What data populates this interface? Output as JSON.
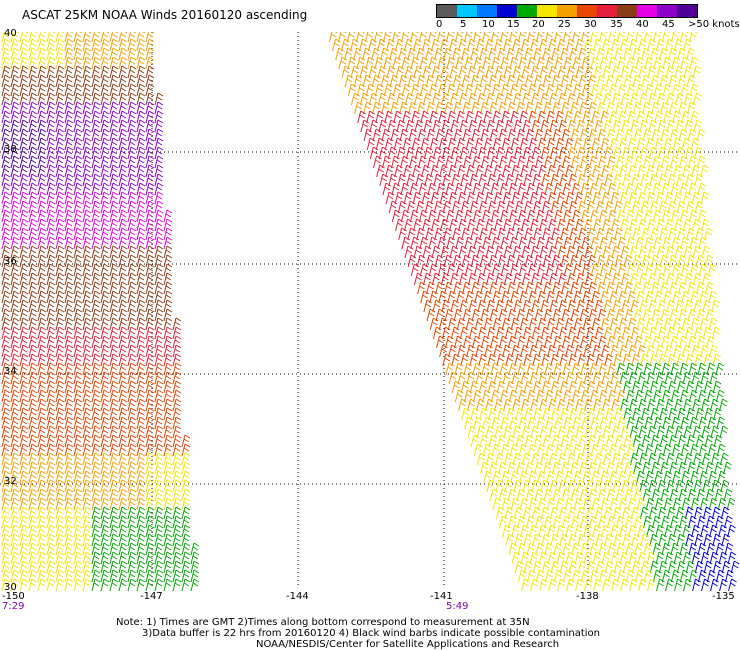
{
  "title": "ASCAT 25KM NOAA Winds 20160120 ascending",
  "legend": {
    "labels": [
      "0",
      "5",
      "10",
      "15",
      "20",
      "25",
      "30",
      "35",
      "40",
      "45",
      ">50 knots"
    ],
    "colors": [
      "#5a5a5a",
      "#00c8ff",
      "#0078ff",
      "#0000d2",
      "#00aa00",
      "#f5e600",
      "#f5a000",
      "#e64600",
      "#e61e3c",
      "#8c3c14",
      "#e600e6",
      "#8c00c8",
      "#500096"
    ]
  },
  "longitude_labels": [
    "-150",
    "-147",
    "-144",
    "-141",
    "-138",
    "-135"
  ],
  "latitude_labels": [
    "40",
    "38",
    "36",
    "34",
    "32",
    "30"
  ],
  "time_labels": [
    "7:29",
    "5:49"
  ],
  "notes": [
    "Note: 1) Times are GMT 2)Times along bottom correspond to measurement at 35N",
    "3)Data buffer is 22 hrs from 20160120 4) Black wind barbs indicate possible contamination",
    "NOAA/NESDIS/Center for Satellite Applications and Research"
  ]
}
